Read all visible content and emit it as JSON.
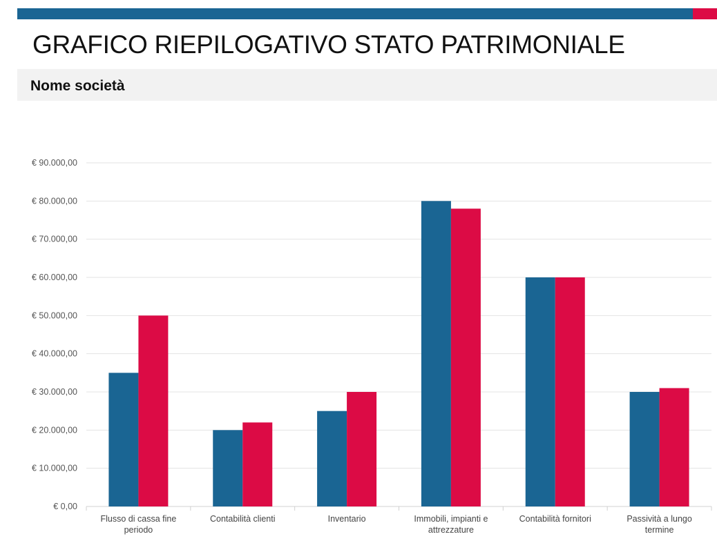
{
  "header": {
    "title": "GRAFICO RIEPILOGATIVO STATO PATRIMONIALE",
    "company": "Nome società",
    "accent_colors": [
      "#1a6593",
      "#dc0b45"
    ]
  },
  "chart_data": {
    "type": "bar",
    "title": "",
    "xlabel": "",
    "ylabel": "",
    "ylim": [
      0,
      90000
    ],
    "grid": true,
    "yticks": [
      0,
      10000,
      20000,
      30000,
      40000,
      50000,
      60000,
      70000,
      80000,
      90000
    ],
    "ytick_labels": [
      "€ 0,00",
      "€ 10.000,00",
      "€ 20.000,00",
      "€ 30.000,00",
      "€ 40.000,00",
      "€ 50.000,00",
      "€ 60.000,00",
      "€ 70.000,00",
      "€ 80.000,00",
      "€ 90.000,00"
    ],
    "categories": [
      [
        "Flusso di cassa fine",
        "periodo"
      ],
      [
        "Contabilità clienti"
      ],
      [
        "Inventario"
      ],
      [
        "Immobili, impianti e",
        "attrezzature"
      ],
      [
        "Contabilità fornitori"
      ],
      [
        "Passività a lungo",
        "termine"
      ]
    ],
    "series": [
      {
        "color": "#1a6593",
        "values": [
          35000,
          20000,
          25000,
          80000,
          60000,
          30000
        ]
      },
      {
        "color": "#dc0b45",
        "values": [
          50000,
          22000,
          30000,
          78000,
          60000,
          31000
        ]
      }
    ]
  }
}
